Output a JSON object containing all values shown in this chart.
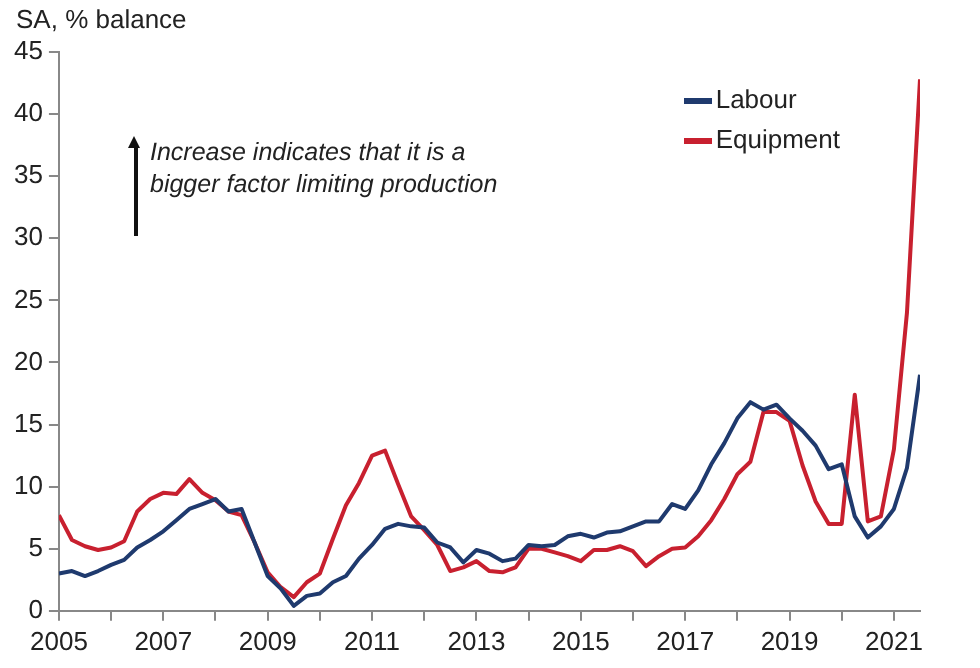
{
  "chart_data": {
    "type": "line",
    "ylabel": "SA, % balance",
    "annotations": [
      "Increase indicates that it is a bigger factor limiting production"
    ],
    "x": [
      2005,
      2005.25,
      2005.5,
      2005.75,
      2006,
      2006.25,
      2006.5,
      2006.75,
      2007,
      2007.25,
      2007.5,
      2007.75,
      2008,
      2008.25,
      2008.5,
      2008.75,
      2009,
      2009.25,
      2009.5,
      2009.75,
      2010,
      2010.25,
      2010.5,
      2010.75,
      2011,
      2011.25,
      2011.5,
      2011.75,
      2012,
      2012.25,
      2012.5,
      2012.75,
      2013,
      2013.25,
      2013.5,
      2013.75,
      2014,
      2014.25,
      2014.5,
      2014.75,
      2015,
      2015.25,
      2015.5,
      2015.75,
      2016,
      2016.25,
      2016.5,
      2016.75,
      2017,
      2017.25,
      2017.5,
      2017.75,
      2018,
      2018.25,
      2018.5,
      2018.75,
      2019,
      2019.25,
      2019.5,
      2019.75,
      2020,
      2020.25,
      2020.5,
      2020.75,
      2021,
      2021.25,
      2021.5
    ],
    "series": [
      {
        "name": "Labour",
        "color": "#1f3a6e",
        "values": [
          3.0,
          3.2,
          2.8,
          3.2,
          3.7,
          4.1,
          5.1,
          5.7,
          6.4,
          7.3,
          8.2,
          8.6,
          9.0,
          8.0,
          8.2,
          5.5,
          2.8,
          1.8,
          0.4,
          1.2,
          1.4,
          2.3,
          2.8,
          4.2,
          5.3,
          6.6,
          7.0,
          6.8,
          6.7,
          5.5,
          5.1,
          3.9,
          4.9,
          4.6,
          4.0,
          4.2,
          5.3,
          5.2,
          5.3,
          6.0,
          6.2,
          5.9,
          6.3,
          6.4,
          6.8,
          7.2,
          7.2,
          8.6,
          8.2,
          9.7,
          11.8,
          13.5,
          15.5,
          16.8,
          16.2,
          16.6,
          15.5,
          14.5,
          13.3,
          11.4,
          11.8,
          7.6,
          5.9,
          6.8,
          8.2,
          11.5,
          19.0
        ]
      },
      {
        "name": "Equipment",
        "color": "#c8202f",
        "values": [
          7.7,
          5.7,
          5.2,
          4.9,
          5.1,
          5.6,
          8.0,
          9.0,
          9.5,
          9.4,
          10.6,
          9.5,
          8.9,
          8.0,
          7.7,
          5.5,
          3.1,
          1.9,
          1.1,
          2.3,
          3.0,
          5.8,
          8.5,
          10.3,
          12.5,
          12.9,
          10.2,
          7.6,
          6.5,
          5.3,
          3.2,
          3.5,
          4.0,
          3.2,
          3.1,
          3.5,
          5.0,
          5.0,
          4.7,
          4.4,
          4.0,
          4.9,
          4.9,
          5.2,
          4.8,
          3.6,
          4.4,
          5.0,
          5.1,
          6.0,
          7.3,
          9.0,
          11.0,
          12.0,
          16.0,
          16.0,
          15.3,
          11.7,
          8.8,
          7.0,
          7.0,
          17.4,
          7.2,
          7.6,
          13.0,
          24.0,
          42.8
        ]
      }
    ],
    "xlim": [
      2005,
      2021.5
    ],
    "xticks": [
      2005,
      {
        "value": 2006,
        "label": null
      },
      2007,
      {
        "value": 2008,
        "label": null
      },
      2009,
      {
        "value": 2010,
        "label": null
      },
      2011,
      {
        "value": 2012,
        "label": null
      },
      2013,
      {
        "value": 2014,
        "label": null
      },
      2015,
      {
        "value": 2016,
        "label": null
      },
      2017,
      {
        "value": 2018,
        "label": null
      },
      2019,
      {
        "value": 2020,
        "label": null
      },
      2021
    ],
    "ylim": [
      0,
      45
    ],
    "yticks": [
      0,
      5,
      10,
      15,
      20,
      25,
      30,
      35,
      40,
      45
    ],
    "grid": false,
    "legend": "top right",
    "marker": "none",
    "line_style": "solid"
  }
}
